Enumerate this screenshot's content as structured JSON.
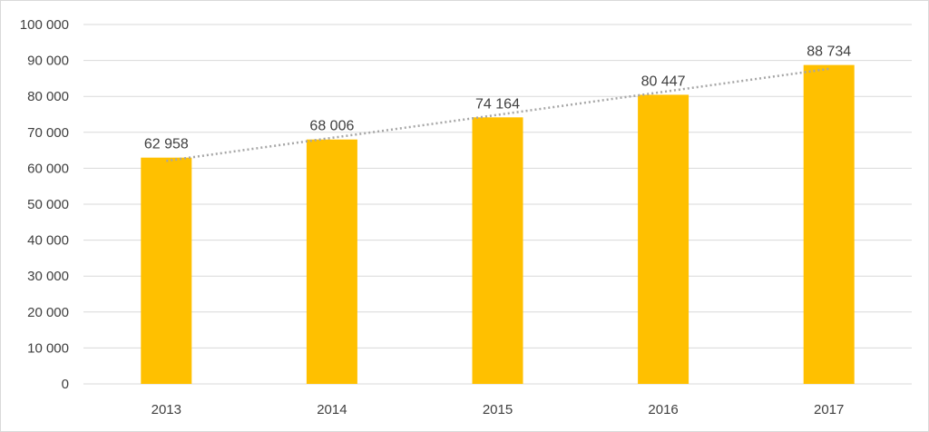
{
  "chart_data": {
    "type": "bar",
    "categories": [
      "2013",
      "2014",
      "2015",
      "2016",
      "2017"
    ],
    "values": [
      62958,
      68006,
      74164,
      80447,
      88734
    ],
    "data_labels": [
      "62 958",
      "68 006",
      "74 164",
      "80 447",
      "88 734"
    ],
    "y_tick_values": [
      0,
      10000,
      20000,
      30000,
      40000,
      50000,
      60000,
      70000,
      80000,
      90000,
      100000
    ],
    "y_tick_labels": [
      "0",
      "10 000",
      "20 000",
      "30 000",
      "40 000",
      "50 000",
      "60 000",
      "70 000",
      "80 000",
      "90 000",
      "100 000"
    ],
    "ylim": [
      0,
      100000
    ],
    "title": "",
    "xlabel": "",
    "ylabel": "",
    "grid": true,
    "trendline": {
      "type": "linear",
      "style": "dotted"
    },
    "colors": {
      "bar": "#FFC000",
      "grid": "#d9d9d9",
      "trendline": "#a6a6a6",
      "text": "#404040"
    }
  }
}
